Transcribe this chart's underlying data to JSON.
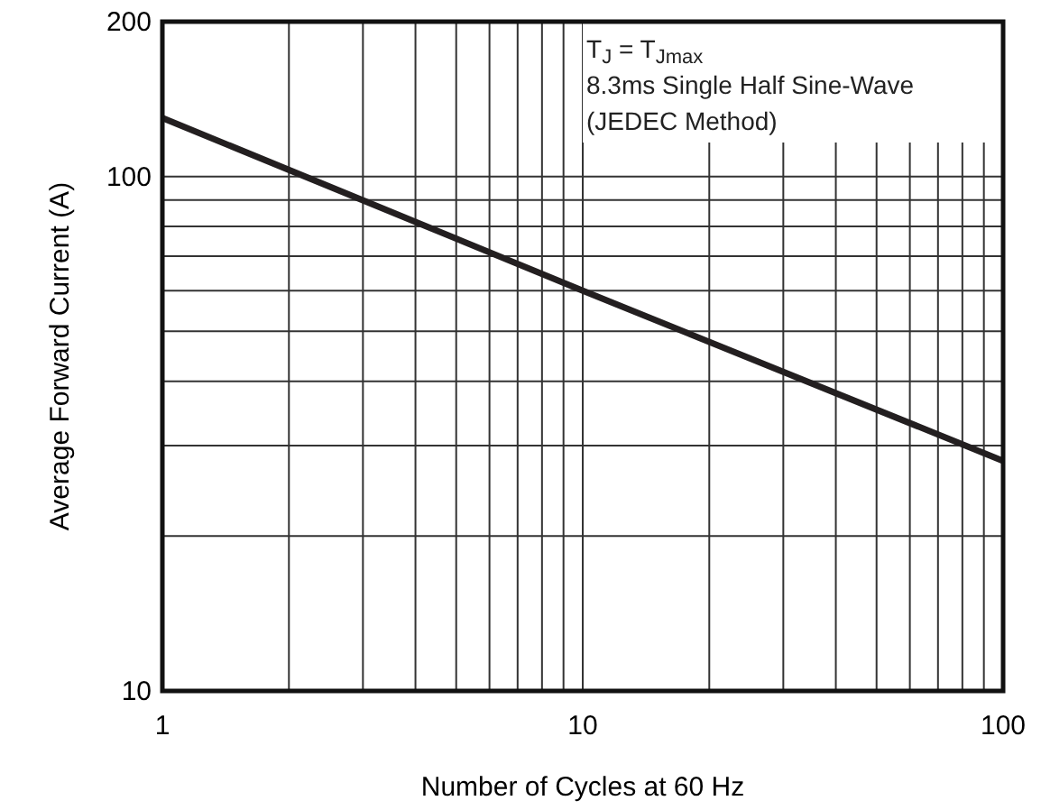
{
  "chart_data": {
    "type": "line",
    "xlabel": "Number of Cycles at 60 Hz",
    "ylabel": "Average Forward Current (A)",
    "x": [
      1,
      10,
      100
    ],
    "series": [
      {
        "color": "#231f20",
        "values": [
          130,
          60,
          28
        ]
      }
    ],
    "log": "xy",
    "xlim": [
      1,
      100
    ],
    "ylim": [
      10,
      200
    ],
    "xticks": [
      1,
      10,
      100
    ],
    "yticks": [
      10,
      100,
      200
    ],
    "grid": true,
    "annotations": [
      "T$_{J}$ = T$_{Jmax}$",
      "8.3ms Single Half Sine-Wave",
      "(JEDEC Method)"
    ]
  }
}
